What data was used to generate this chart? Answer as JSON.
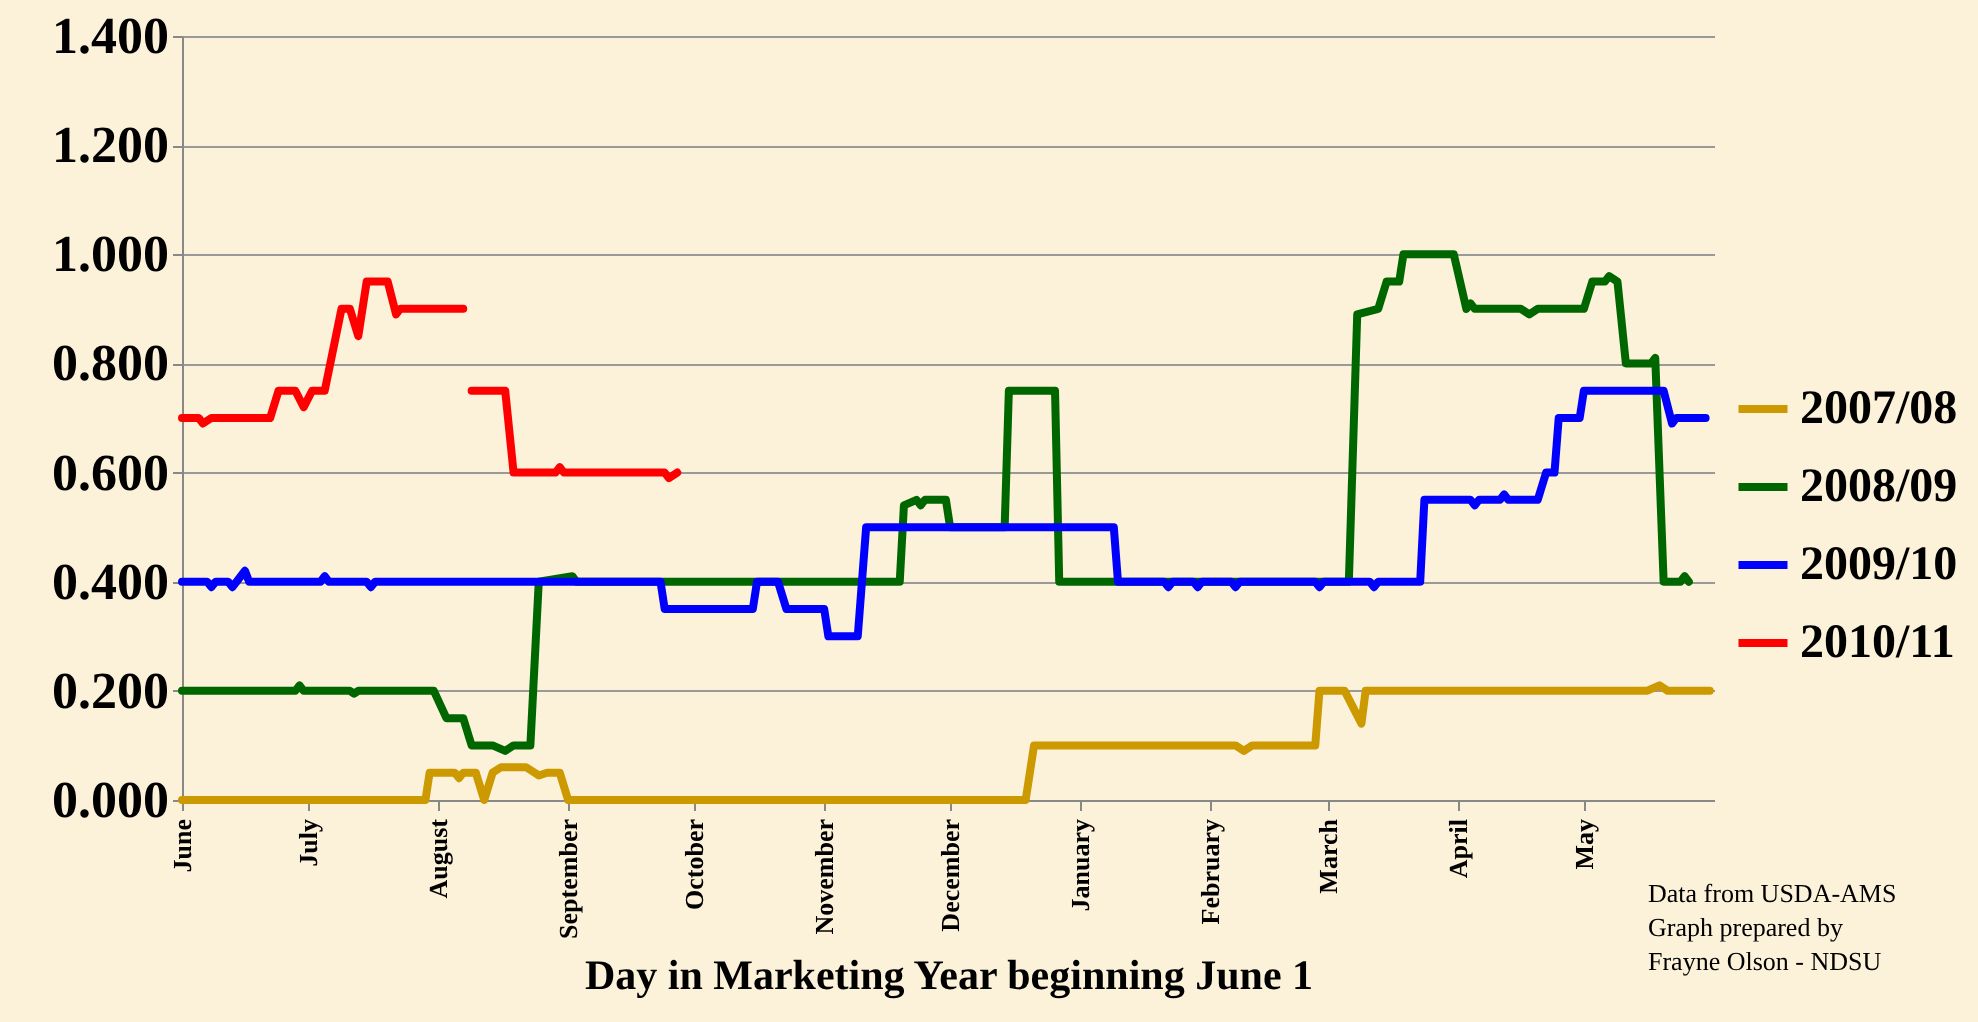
{
  "chart_data": {
    "type": "line",
    "xlabel": "Day in Marketing Year beginning June 1",
    "xlim": [
      "2010-06-01",
      "2011-06-01"
    ],
    "xticks": [
      {
        "value": "2010-06-01",
        "label": "June"
      },
      {
        "value": "2010-07-01",
        "label": "July"
      },
      {
        "value": "2010-08-01",
        "label": "August"
      },
      {
        "value": "2010-09-01",
        "label": "September"
      },
      {
        "value": "2010-10-01",
        "label": "October"
      },
      {
        "value": "2010-11-01",
        "label": "November"
      },
      {
        "value": "2010-12-01",
        "label": "December"
      },
      {
        "value": "2011-01-01",
        "label": "January"
      },
      {
        "value": "2011-02-01",
        "label": "February"
      },
      {
        "value": "2011-03-01",
        "label": "March"
      },
      {
        "value": "2011-04-01",
        "label": "April"
      },
      {
        "value": "2011-05-01",
        "label": "May"
      }
    ],
    "ylim": [
      0,
      1.4
    ],
    "yticks": [
      {
        "value": 0,
        "label": "0.000"
      },
      {
        "value": 0.2,
        "label": "0.200"
      },
      {
        "value": 0.4,
        "label": "0.400"
      },
      {
        "value": 0.6,
        "label": "0.600"
      },
      {
        "value": 0.8,
        "label": "0.800"
      },
      {
        "value": 1.0,
        "label": "1.000"
      },
      {
        "value": 1.2,
        "label": "1.200"
      },
      {
        "value": 1.4,
        "label": "1.400"
      }
    ],
    "grid": "y",
    "legend": "right",
    "marker": "none",
    "line_style": "solid",
    "annotations": [
      "Data from USDA-AMS",
      "Graph prepared by",
      "Frayne Olson - NDSU"
    ],
    "series": [
      {
        "name": "2007/08",
        "color": "#cc9900",
        "x": [
          "2010-06-01",
          "2010-07-29",
          "2010-07-30",
          "2010-08-05",
          "2010-08-06",
          "2010-08-07",
          "2010-08-10",
          "2010-08-12",
          "2010-08-14",
          "2010-08-16",
          "2010-08-22",
          "2010-08-25",
          "2010-08-27",
          "2010-08-30",
          "2010-09-01",
          "2010-12-19",
          "2010-12-21",
          "2011-02-07",
          "2011-02-09",
          "2011-02-11",
          "2011-02-26",
          "2011-02-27",
          "2011-03-05",
          "2011-03-09",
          "2011-03-10",
          "2011-05-16",
          "2011-05-19",
          "2011-05-21",
          "2011-05-31"
        ],
        "values": [
          0,
          0,
          0.05,
          0.05,
          0.04,
          0.05,
          0.05,
          0,
          0.05,
          0.06,
          0.06,
          0.045,
          0.05,
          0.05,
          0,
          0,
          0.1,
          0.1,
          0.09,
          0.1,
          0.1,
          0.2,
          0.2,
          0.14,
          0.2,
          0.2,
          0.21,
          0.2,
          0.2
        ]
      },
      {
        "name": "2008/09",
        "color": "#006600",
        "x": [
          "2010-06-01",
          "2010-06-28",
          "2010-06-29",
          "2010-06-30",
          "2010-07-11",
          "2010-07-12",
          "2010-07-13",
          "2010-07-30",
          "2010-07-31",
          "2010-08-03",
          "2010-08-07",
          "2010-08-09",
          "2010-08-14",
          "2010-08-17",
          "2010-08-19",
          "2010-08-23",
          "2010-08-25",
          "2010-09-02",
          "2010-09-03",
          "2010-10-16",
          "2010-11-02",
          "2010-11-19",
          "2010-11-20",
          "2010-11-23",
          "2010-11-24",
          "2010-11-25",
          "2010-11-30",
          "2010-12-01",
          "2010-12-14",
          "2010-12-15",
          "2010-12-26",
          "2010-12-27",
          "2011-03-06",
          "2011-03-08",
          "2011-03-13",
          "2011-03-15",
          "2011-03-18",
          "2011-03-19",
          "2011-03-31",
          "2011-04-03",
          "2011-04-04",
          "2011-04-05",
          "2011-04-16",
          "2011-04-18",
          "2011-04-20",
          "2011-05-01",
          "2011-05-03",
          "2011-05-06",
          "2011-05-07",
          "2011-05-09",
          "2011-05-11",
          "2011-05-17",
          "2011-05-18",
          "2011-05-20",
          "2011-05-24",
          "2011-05-25",
          "2011-05-26"
        ],
        "values": [
          0.2,
          0.2,
          0.21,
          0.2,
          0.2,
          0.195,
          0.2,
          0.2,
          0.2,
          0.15,
          0.15,
          0.1,
          0.1,
          0.09,
          0.1,
          0.1,
          0.4,
          0.41,
          0.4,
          0.4,
          0.4,
          0.4,
          0.54,
          0.55,
          0.54,
          0.55,
          0.55,
          0.5,
          0.5,
          0.75,
          0.75,
          0.4,
          0.4,
          0.89,
          0.9,
          0.95,
          0.95,
          1.0,
          1.0,
          0.9,
          0.91,
          0.9,
          0.9,
          0.89,
          0.9,
          0.9,
          0.95,
          0.95,
          0.96,
          0.95,
          0.8,
          0.8,
          0.81,
          0.4,
          0.4,
          0.41,
          0.4
        ]
      },
      {
        "name": "2009/10",
        "color": "#0000ff",
        "x": [
          "2010-06-01",
          "2010-06-07",
          "2010-06-08",
          "2010-06-09",
          "2010-06-12",
          "2010-06-13",
          "2010-06-14",
          "2010-06-16",
          "2010-06-17",
          "2010-07-04",
          "2010-07-05",
          "2010-07-06",
          "2010-07-15",
          "2010-07-16",
          "2010-07-17",
          "2010-09-23",
          "2010-09-24",
          "2010-10-13",
          "2010-10-15",
          "2010-10-16",
          "2010-10-21",
          "2010-10-23",
          "2010-11-01",
          "2010-11-02",
          "2010-11-09",
          "2010-11-11",
          "2011-01-09",
          "2011-01-10",
          "2011-01-21",
          "2011-01-22",
          "2011-01-23",
          "2011-01-28",
          "2011-01-29",
          "2011-01-30",
          "2011-02-06",
          "2011-02-07",
          "2011-02-08",
          "2011-02-26",
          "2011-02-27",
          "2011-02-28",
          "2011-03-11",
          "2011-03-12",
          "2011-03-13",
          "2011-03-23",
          "2011-03-24",
          "2011-04-04",
          "2011-04-05",
          "2011-04-06",
          "2011-04-11",
          "2011-04-12",
          "2011-04-13",
          "2011-04-20",
          "2011-04-22",
          "2011-04-24",
          "2011-04-25",
          "2011-04-30",
          "2011-05-01",
          "2011-05-20",
          "2011-05-22",
          "2011-05-23",
          "2011-05-30"
        ],
        "values": [
          0.4,
          0.4,
          0.39,
          0.4,
          0.4,
          0.39,
          0.4,
          0.42,
          0.4,
          0.4,
          0.41,
          0.4,
          0.4,
          0.39,
          0.4,
          0.4,
          0.35,
          0.35,
          0.35,
          0.4,
          0.4,
          0.35,
          0.35,
          0.3,
          0.3,
          0.5,
          0.5,
          0.4,
          0.4,
          0.39,
          0.4,
          0.4,
          0.39,
          0.4,
          0.4,
          0.39,
          0.4,
          0.4,
          0.39,
          0.4,
          0.4,
          0.39,
          0.4,
          0.4,
          0.55,
          0.55,
          0.54,
          0.55,
          0.55,
          0.56,
          0.55,
          0.55,
          0.6,
          0.6,
          0.7,
          0.7,
          0.75,
          0.75,
          0.69,
          0.7,
          0.7
        ]
      },
      {
        "name": "2010/11",
        "color": "#ff0000",
        "x": [
          "2010-06-01",
          "2010-06-05",
          "2010-06-06",
          "2010-06-08",
          "2010-06-22",
          "2010-06-24",
          "2010-06-28",
          "2010-06-30",
          "2010-07-02",
          "2010-07-05",
          "2010-07-09",
          "2010-07-11",
          "2010-07-13",
          "2010-07-15",
          "2010-07-20",
          "2010-07-22",
          "2010-07-23",
          "2010-08-07",
          "2010-08-08",
          "2010-08-09",
          "2010-08-17",
          "2010-08-19",
          "2010-08-29",
          "2010-08-30",
          "2010-08-31",
          "2010-09-24",
          "2010-09-25",
          "2010-09-27"
        ],
        "values": [
          0.7,
          0.7,
          0.69,
          0.7,
          0.7,
          0.75,
          0.75,
          0.72,
          0.75,
          0.75,
          0.9,
          0.9,
          0.85,
          0.95,
          0.95,
          0.89,
          0.9,
          0.9,
          null,
          0.75,
          0.75,
          0.6,
          0.6,
          0.61,
          0.6,
          0.6,
          0.59,
          0.6
        ]
      }
    ]
  }
}
